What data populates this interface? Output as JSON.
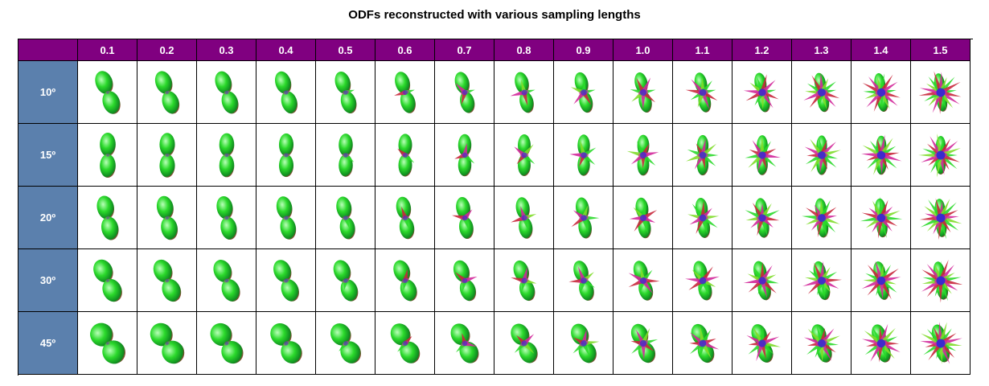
{
  "title": "ODFs reconstructed with various sampling lengths",
  "corner_label": "",
  "column_headers": [
    "0.1",
    "0.2",
    "0.3",
    "0.4",
    "0.5",
    "0.6",
    "0.7",
    "0.8",
    "0.9",
    "1.0",
    "1.1",
    "1.2",
    "1.3",
    "1.4",
    "1.5"
  ],
  "row_headers": [
    "10º",
    "15º",
    "20º",
    "30º",
    "45º"
  ],
  "colors": {
    "header_bg": "#800080",
    "row_header_bg": "#5b80ad",
    "odf_green": "#2bd92b",
    "odf_red": "#c8283c",
    "odf_blue": "#2a2ad6",
    "odf_magenta": "#d2289a"
  }
}
